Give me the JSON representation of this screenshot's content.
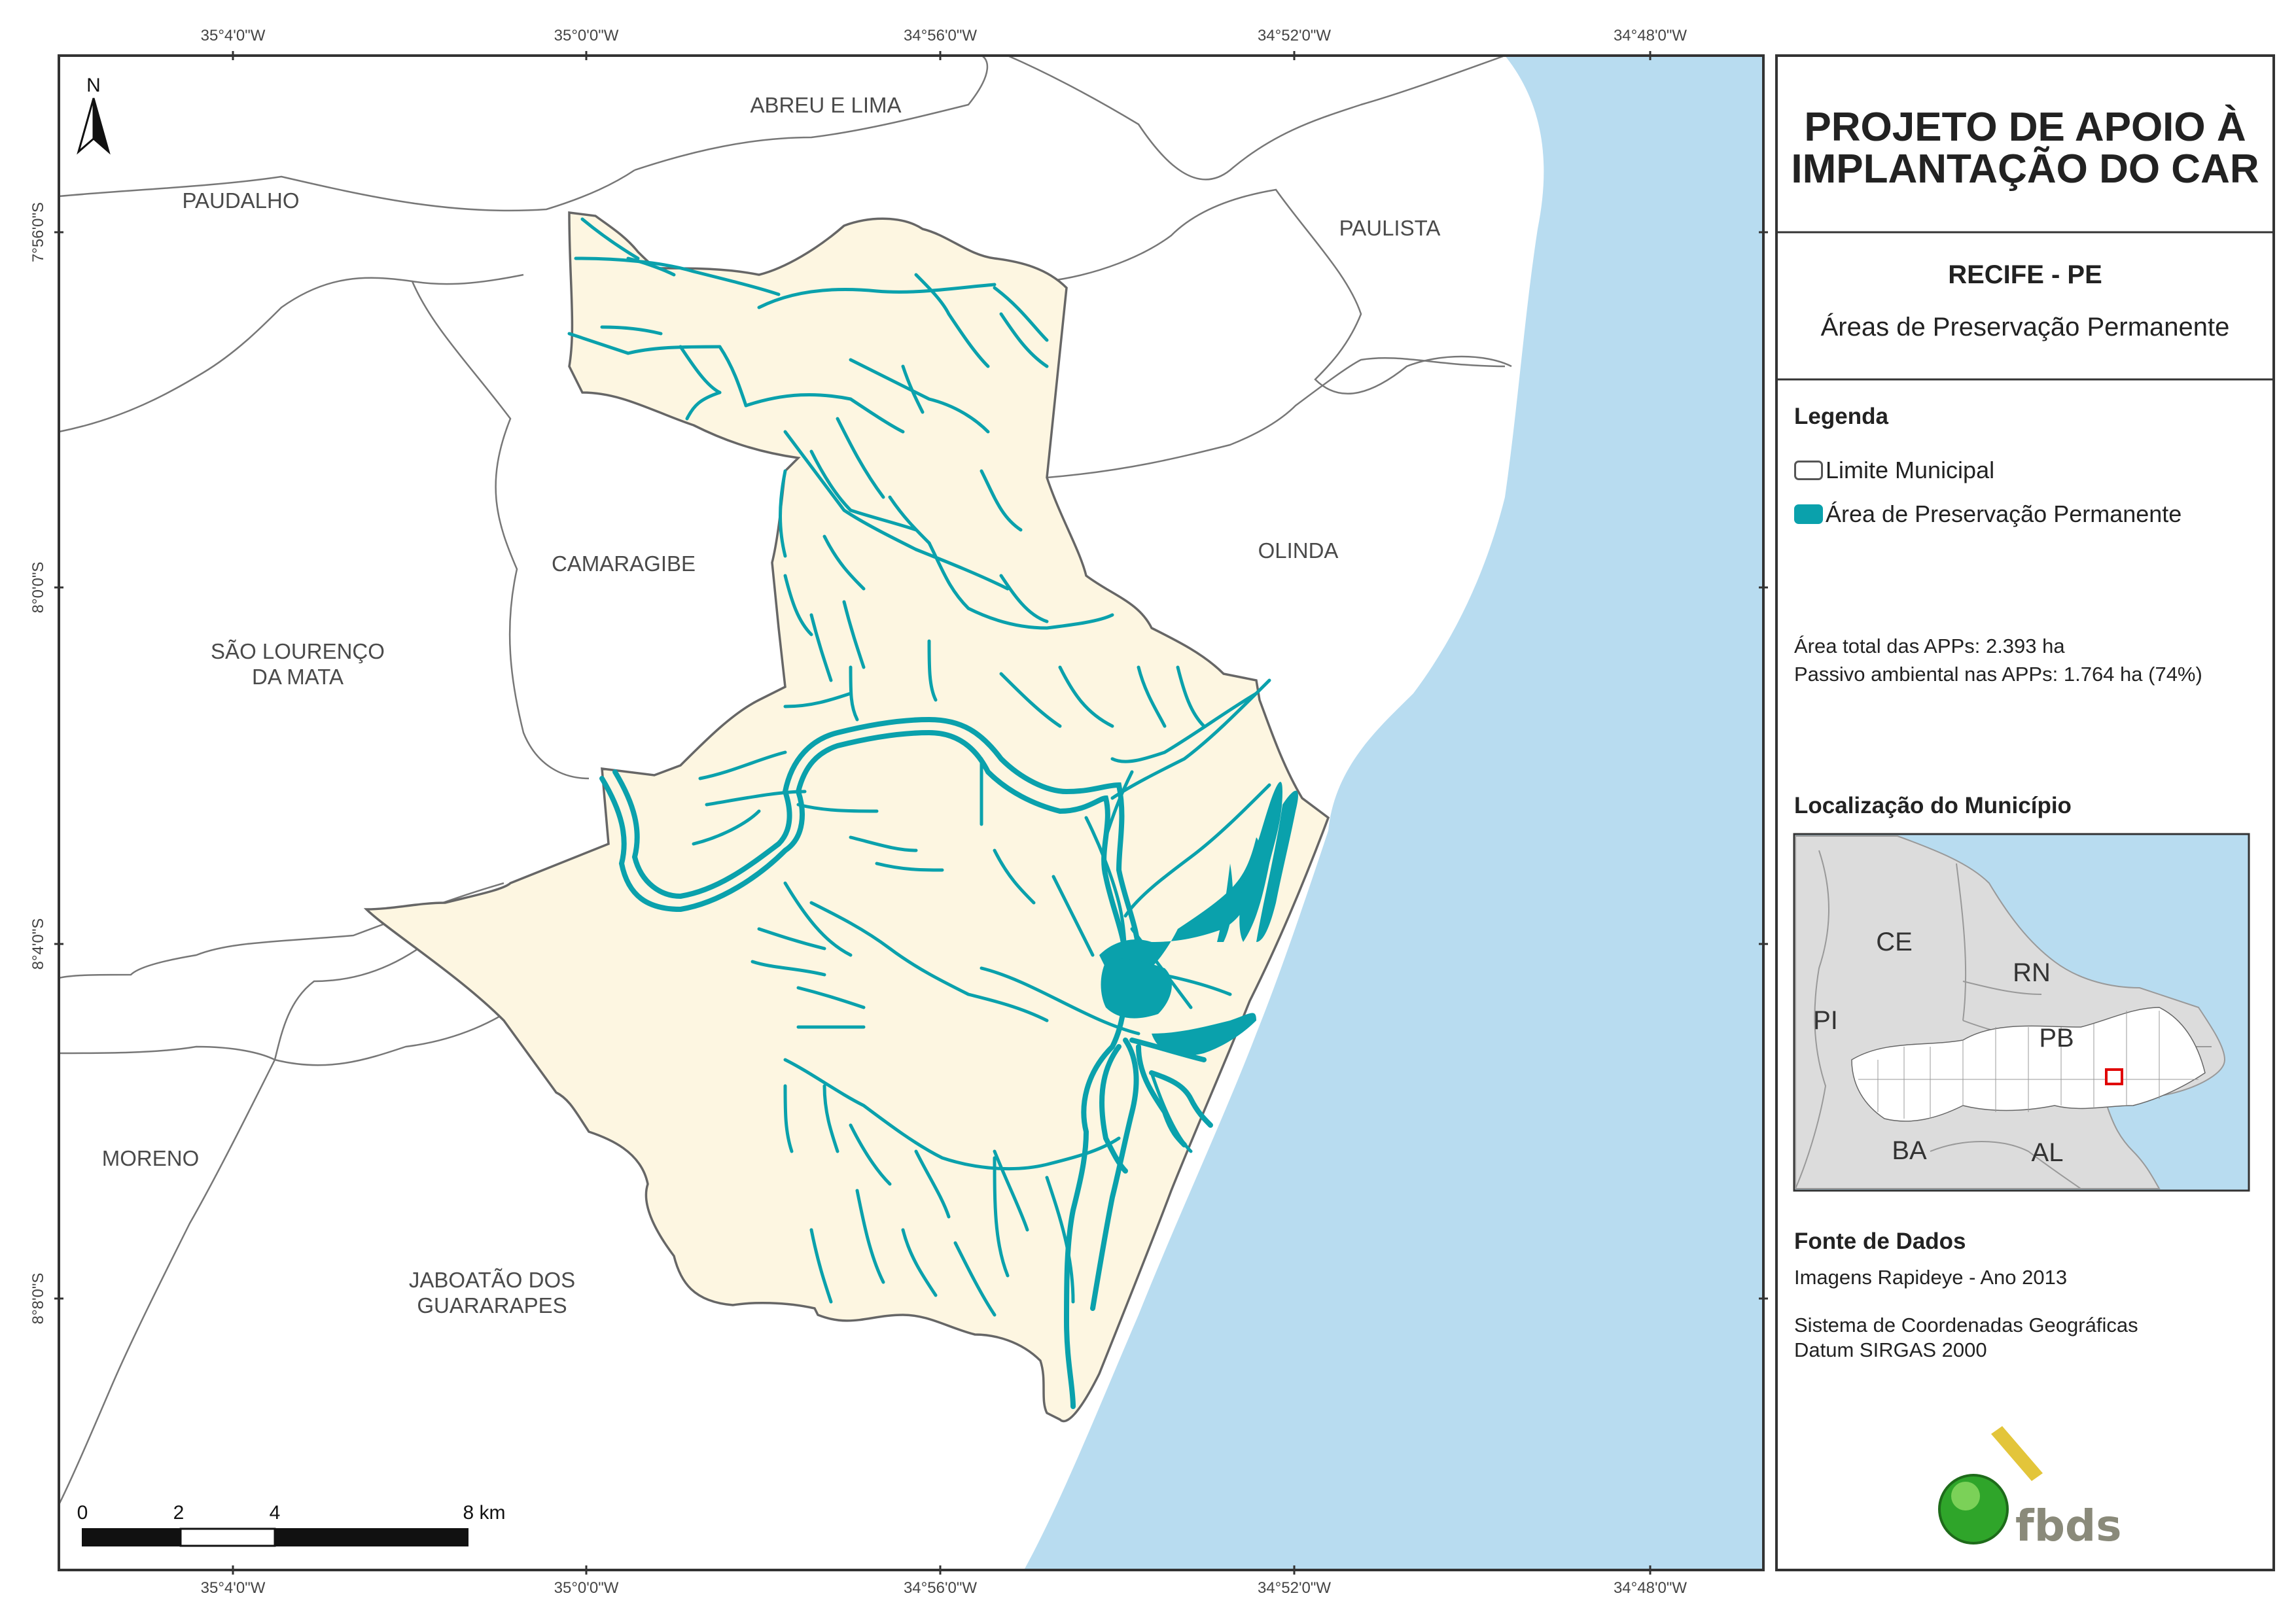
{
  "panel": {
    "title_line1": "PROJETO DE APOIO À",
    "title_line2": "IMPLANTAÇÃO DO CAR",
    "municipality": "RECIFE - PE",
    "subject": "Áreas de Preservação Permanente",
    "legend_title": "Legenda",
    "legend_items": [
      {
        "label": "Limite Municipal",
        "fill": "#ffffff",
        "stroke": "#555555"
      },
      {
        "label": "Área de Preservação Permanente",
        "fill": "#0aa1ac",
        "stroke": "#0aa1ac"
      }
    ],
    "stats": [
      {
        "label": "Área total das APPs:",
        "value": "2.393 ha"
      },
      {
        "label": "Passivo ambiental nas APPs:",
        "value": "1.764 ha (74%)"
      }
    ],
    "location_title": "Localização do Município",
    "states": [
      "CE",
      "RN",
      "PI",
      "PB",
      "BA",
      "AL"
    ],
    "source_title": "Fonte de Dados",
    "source_lines": [
      "Imagens Rapideye - Ano 2013",
      "Sistema de Coordenadas Geográficas",
      "Datum SIRGAS 2000"
    ],
    "logo_text": "fbds"
  },
  "map": {
    "north_label": "N",
    "lon_ticks": [
      "35°4'0\"W",
      "35°0'0\"W",
      "34°56'0\"W",
      "34°52'0\"W",
      "34°48'0\"W"
    ],
    "lat_ticks": [
      "7°56'0\"S",
      "8°0'0\"S",
      "8°4'0\"S",
      "8°8'0\"S"
    ],
    "municipalities": {
      "abreu_e_lima": "ABREU E LIMA",
      "paudalho": "PAUDALHO",
      "paulista": "PAULISTA",
      "camaragibe": "CAMARAGIBE",
      "olinda": "OLINDA",
      "sao_lourenco_1": "SÃO LOURENÇO",
      "sao_lourenco_2": "DA MATA",
      "moreno": "MORENO",
      "jaboatao_1": "JABOATÃO DOS",
      "jaboatao_2": "GUARARAPES"
    },
    "scale_labels": [
      "0",
      "2",
      "4",
      "8 km"
    ],
    "colors": {
      "ocean": "#b8dcf0",
      "municipality": "#fdf6e1",
      "app": "#0aa1ac",
      "boundary": "#666666"
    }
  }
}
